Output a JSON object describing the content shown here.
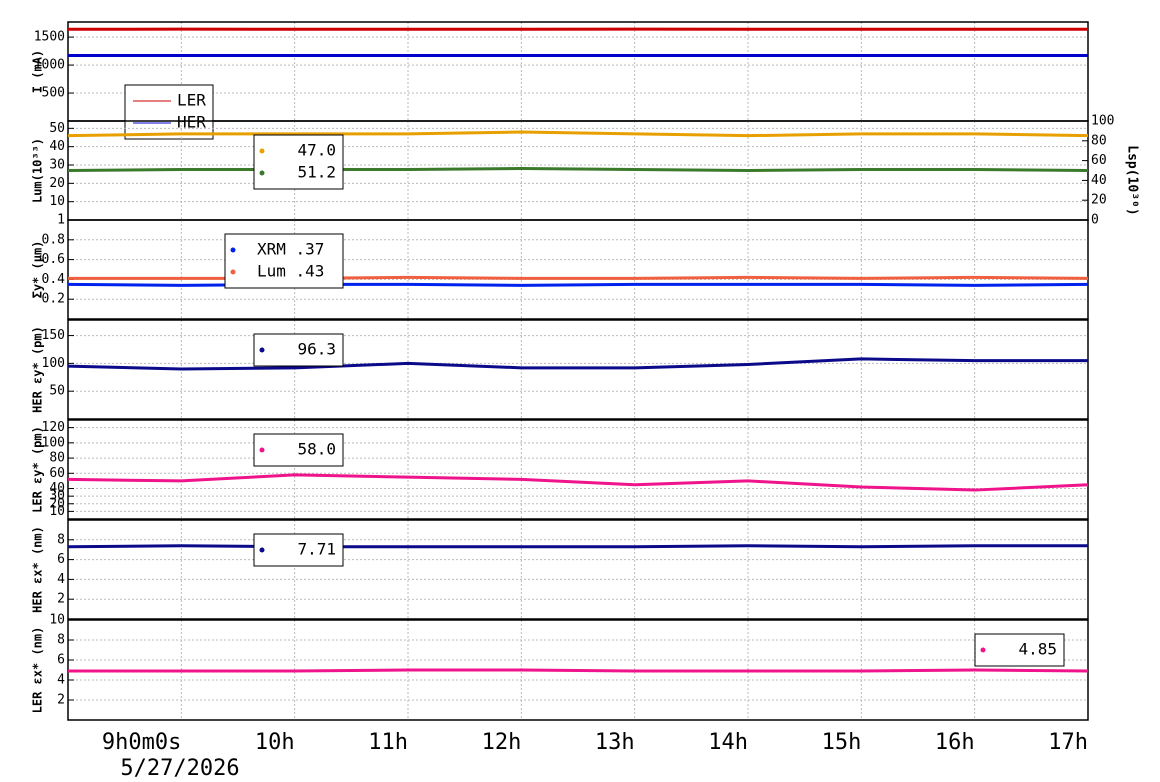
{
  "chart_data": [
    {
      "type": "line",
      "ylabel": "I (mA)",
      "x": [
        8,
        9,
        10,
        11,
        12,
        13,
        14,
        15,
        16,
        17
      ],
      "ylim": [
        0,
        1770
      ],
      "yticks": [
        500,
        1000,
        1500
      ],
      "series": [
        {
          "name": "LER",
          "color": "#cc0000",
          "values": [
            1640,
            1642,
            1640,
            1641,
            1640,
            1642,
            1641,
            1640,
            1641,
            1641
          ]
        },
        {
          "name": "HER",
          "color": "#0000cc",
          "values": [
            1170,
            1171,
            1170,
            1170,
            1171,
            1170,
            1170,
            1171,
            1170,
            1170
          ]
        }
      ]
    },
    {
      "type": "line",
      "ylabel": "Lum(10³³)",
      "y2label": "Lsp(10³⁰)",
      "x": [
        8,
        9,
        10,
        11,
        12,
        13,
        14,
        15,
        16,
        17
      ],
      "ylim": [
        0,
        54
      ],
      "yticks": [
        10,
        20,
        30,
        40,
        50
      ],
      "y2lim": [
        0,
        100
      ],
      "y2ticks": [
        0,
        20,
        40,
        60,
        80,
        100
      ],
      "series": [
        {
          "name": "47.0",
          "color": "#e8a000",
          "values": [
            46,
            47,
            47,
            47,
            48,
            47,
            46,
            47,
            47,
            46
          ]
        },
        {
          "name": "51.2",
          "color": "#3a7a2a",
          "axis": "y2",
          "values": [
            50,
            51,
            51,
            51,
            52,
            51,
            50,
            51,
            51,
            50
          ]
        }
      ]
    },
    {
      "type": "line",
      "ylabel": "Σy* (μm)",
      "x": [
        8,
        9,
        10,
        11,
        12,
        13,
        14,
        15,
        16,
        17
      ],
      "ylim": [
        0,
        1
      ],
      "yticks": [
        0.2,
        0.4,
        0.6,
        0.8,
        1
      ],
      "series": [
        {
          "name": "XRM  .37",
          "color": "#0022ee",
          "values": [
            0.35,
            0.34,
            0.35,
            0.35,
            0.34,
            0.35,
            0.35,
            0.35,
            0.34,
            0.35
          ]
        },
        {
          "name": "Lum  .43",
          "color": "#f06040",
          "values": [
            0.41,
            0.41,
            0.41,
            0.42,
            0.41,
            0.41,
            0.42,
            0.41,
            0.42,
            0.41
          ]
        }
      ]
    },
    {
      "type": "line",
      "ylabel": "HER εy* (pm)",
      "x": [
        8,
        9,
        10,
        11,
        12,
        13,
        14,
        15,
        16,
        17
      ],
      "ylim": [
        0,
        178
      ],
      "yticks": [
        50,
        100,
        150
      ],
      "series": [
        {
          "name": "96.3",
          "color": "#0a0a8a",
          "values": [
            95,
            90,
            92,
            100,
            92,
            92,
            98,
            108,
            105,
            105
          ]
        }
      ]
    },
    {
      "type": "line",
      "ylabel": "LER εy* (pm)",
      "x": [
        8,
        9,
        10,
        11,
        12,
        13,
        14,
        15,
        16,
        17
      ],
      "ylim": [
        0,
        130
      ],
      "yticks": [
        10,
        20,
        30,
        40,
        60,
        80,
        100,
        120
      ],
      "series": [
        {
          "name": "58.0",
          "color": "#f0148c",
          "values": [
            52,
            50,
            58,
            55,
            52,
            45,
            50,
            42,
            38,
            45
          ]
        }
      ]
    },
    {
      "type": "line",
      "ylabel": "HER εx* (nm)",
      "x": [
        8,
        9,
        10,
        11,
        12,
        13,
        14,
        15,
        16,
        17
      ],
      "ylim": [
        0,
        10
      ],
      "yticks": [
        2,
        4,
        6,
        8
      ],
      "series": [
        {
          "name": "7.71",
          "color": "#0a0a8a",
          "values": [
            7.3,
            7.4,
            7.3,
            7.3,
            7.3,
            7.3,
            7.4,
            7.3,
            7.4,
            7.4
          ]
        }
      ]
    },
    {
      "type": "line",
      "ylabel": "LER εx* (nm)",
      "x": [
        8,
        9,
        10,
        11,
        12,
        13,
        14,
        15,
        16,
        17
      ],
      "ylim": [
        0,
        10
      ],
      "yticks": [
        2,
        4,
        6,
        8,
        10
      ],
      "series": [
        {
          "name": "4.85",
          "color": "#f0148c",
          "values": [
            4.9,
            4.9,
            4.9,
            5.0,
            5.0,
            4.9,
            4.9,
            4.9,
            5.0,
            4.9
          ]
        }
      ],
      "xlim": [
        8,
        17
      ],
      "xticks": [
        {
          "value": 9,
          "label": "9h0m0s"
        },
        {
          "value": 10,
          "label": "10h"
        },
        {
          "value": 11,
          "label": "11h"
        },
        {
          "value": 12,
          "label": "12h"
        },
        {
          "value": 13,
          "label": "13h"
        },
        {
          "value": 14,
          "label": "14h"
        },
        {
          "value": 15,
          "label": "15h"
        },
        {
          "value": 16,
          "label": "16h"
        },
        {
          "value": 17,
          "label": "17h"
        }
      ],
      "date": "5/27/2026"
    }
  ]
}
